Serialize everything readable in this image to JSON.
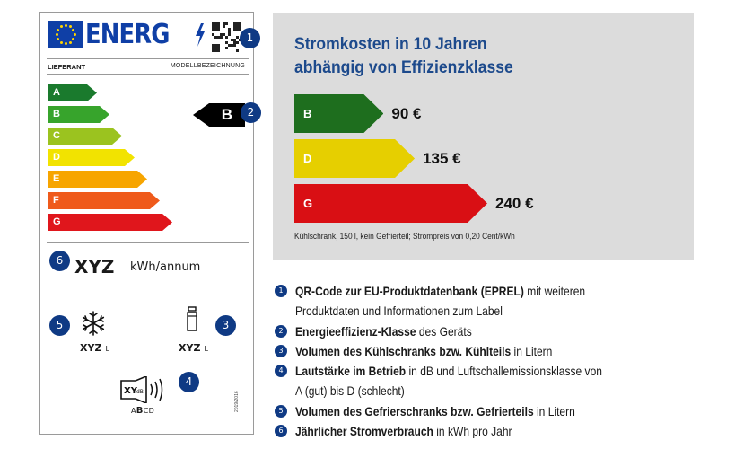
{
  "label": {
    "energy_word": "ENERG",
    "supplier": "LIEFERANT",
    "model": "MODELLBEZEICHNUNG",
    "classes": [
      {
        "letter": "A",
        "color": "#1a7a2d"
      },
      {
        "letter": "B",
        "color": "#37a42c"
      },
      {
        "letter": "C",
        "color": "#9bc31f"
      },
      {
        "letter": "D",
        "color": "#f2e300"
      },
      {
        "letter": "E",
        "color": "#f7a500"
      },
      {
        "letter": "F",
        "color": "#ef5a1b"
      },
      {
        "letter": "G",
        "color": "#e0161c"
      }
    ],
    "rating": "B",
    "consumption_value": "XYZ",
    "consumption_unit": "kWh/annum",
    "freezer_volume": "XYZ",
    "fridge_volume": "XYZ",
    "volume_unit": "L",
    "noise_value": "XY",
    "noise_unit": "dB",
    "noise_scale_prefix": "A",
    "noise_scale_bold": "B",
    "noise_scale_suffix": "CD",
    "regulation": "2019/2016",
    "badges": {
      "qr": "1",
      "rating": "2",
      "fridge": "3",
      "noise": "4",
      "freezer": "5",
      "consumption": "6"
    }
  },
  "cost": {
    "title_line1": "Stromkosten in 10 Jahren",
    "title_line2": "abhängig von Effizienzklasse",
    "bars": [
      {
        "class": "B",
        "value": "90 €",
        "amount": 90,
        "color": "#1e6e1e"
      },
      {
        "class": "D",
        "value": "135 €",
        "amount": 135,
        "color": "#e6cf00"
      },
      {
        "class": "G",
        "value": "240 €",
        "amount": 240,
        "color": "#d90f14"
      }
    ],
    "note": "Kühlschrank, 150 l, kein Gefrierteil; Strompreis von 0,20 Cent/kWh"
  },
  "legend": [
    {
      "num": "1",
      "bold": "QR-Code zur EU-Produktdatenbank (EPREL)",
      "rest": " mit weiteren",
      "line2": "Produktdaten und Informationen zum Label"
    },
    {
      "num": "2",
      "bold": "Energieeffizienz-Klasse",
      "rest": " des Geräts"
    },
    {
      "num": "3",
      "bold": "Volumen des Kühlschranks bzw. Kühlteils",
      "rest": " in Litern"
    },
    {
      "num": "4",
      "bold": "Lautstärke im Betrieb",
      "rest": " in dB und Luftschallemissionsklasse von",
      "line2": "A (gut) bis D (schlecht)"
    },
    {
      "num": "5",
      "bold": "Volumen des Gefrierschranks bzw. Gefrierteils",
      "rest": " in Litern"
    },
    {
      "num": "6",
      "bold": "Jährlicher Stromverbrauch",
      "rest": " in kWh pro Jahr"
    }
  ]
}
